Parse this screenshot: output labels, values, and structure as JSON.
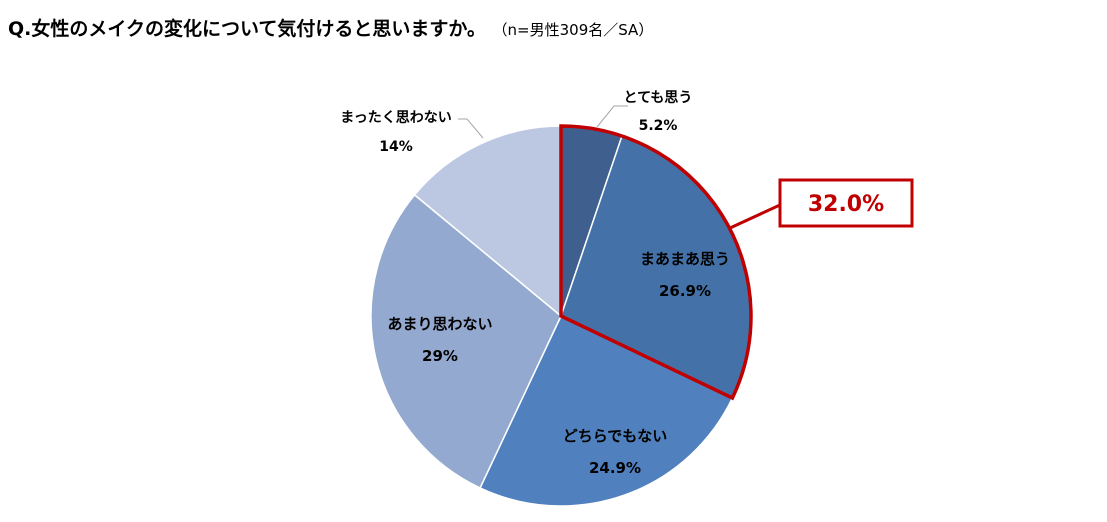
{
  "title": {
    "question": "Q.女性のメイクの変化について気付けると思いますか。",
    "note": "（n=男性309名／SA）"
  },
  "chart_data": {
    "type": "pie",
    "title": "Q.女性のメイクの変化について気付けると思いますか。",
    "slices": [
      {
        "label": "とても思う",
        "value": 5.2,
        "value_label": "5.2%",
        "color": "#3f5f8f"
      },
      {
        "label": "まあまあ思う",
        "value": 26.9,
        "value_label": "26.9%",
        "color": "#4472a8"
      },
      {
        "label": "どちらでもない",
        "value": 24.9,
        "value_label": "24.9%",
        "color": "#5080be"
      },
      {
        "label": "あまり思わない",
        "value": 29,
        "value_label": "29%",
        "color": "#94a9d0"
      },
      {
        "label": "まったく思わない",
        "value": 14,
        "value_label": "14%",
        "color": "#bcc8e2"
      }
    ],
    "highlight": {
      "slices": [
        0,
        1
      ],
      "label": "32.0%",
      "color": "#c00000"
    }
  }
}
